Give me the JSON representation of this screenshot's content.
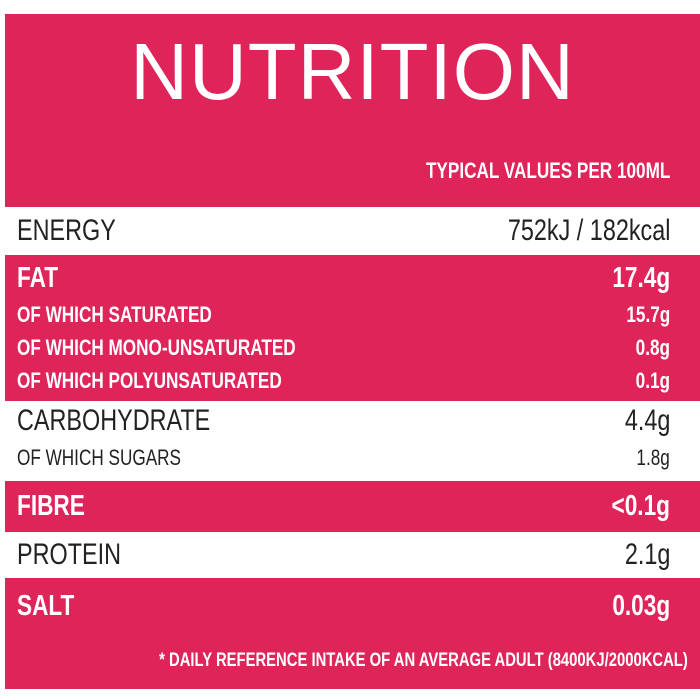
{
  "header": {
    "title": "NUTRITION",
    "subtitle": "TYPICAL VALUES PER 100ML"
  },
  "sections": [
    {
      "label": "ENERGY",
      "value": "752kJ / 182kcal"
    },
    {
      "label": "FAT",
      "value": "17.4g",
      "sub": [
        {
          "label": "OF WHICH SATURATED",
          "value": "15.7g"
        },
        {
          "label": "OF WHICH MONO-UNSATURATED",
          "value": "0.8g"
        },
        {
          "label": "OF WHICH POLYUNSATURATED",
          "value": "0.1g"
        }
      ]
    },
    {
      "label": "CARBOHYDRATE",
      "value": "4.4g",
      "sub": [
        {
          "label": "OF WHICH SUGARS",
          "value": "1.8g"
        }
      ]
    },
    {
      "label": "FIBRE",
      "value": "<0.1g"
    },
    {
      "label": "PROTEIN",
      "value": "2.1g"
    },
    {
      "label": "SALT",
      "value": "0.03g"
    }
  ],
  "footnote": "* DAILY REFERENCE INTAKE OF AN AVERAGE ADULT (8400KJ/2000KCAL)"
}
